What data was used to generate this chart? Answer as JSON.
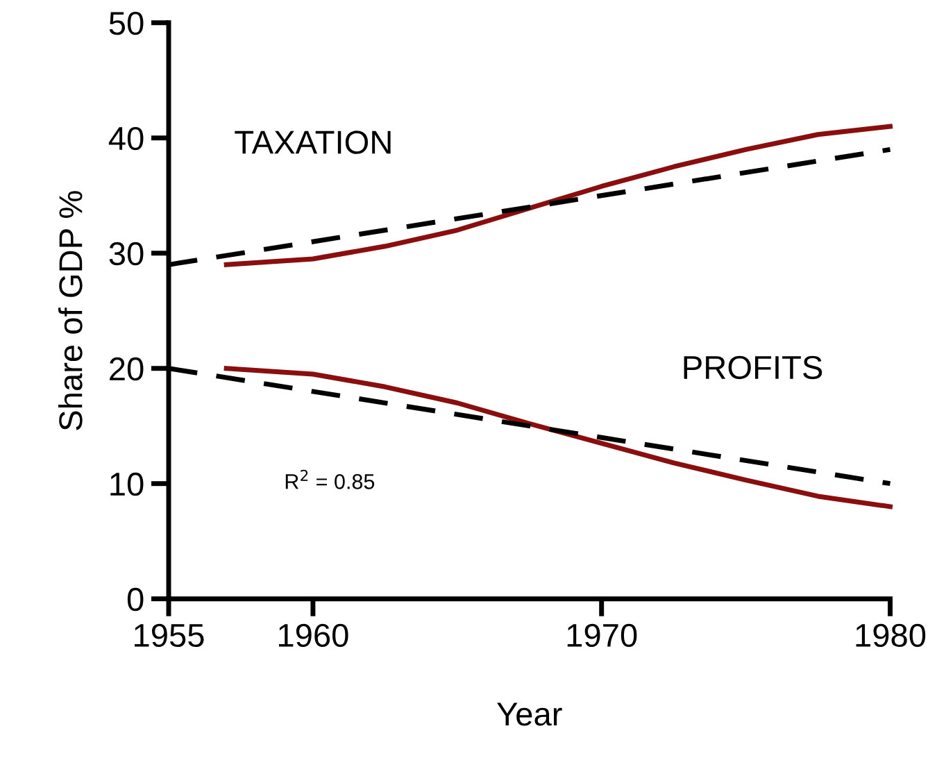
{
  "chart_data": {
    "type": "line",
    "xlabel": "Year",
    "ylabel": "Share of GDP %",
    "xlim": [
      1955,
      1980
    ],
    "ylim": [
      0,
      50
    ],
    "xticks": [
      1955,
      1960,
      1970,
      1980
    ],
    "yticks": [
      0,
      10,
      20,
      30,
      40,
      50
    ],
    "grid": false,
    "legend": false,
    "marker": "none",
    "series": [
      {
        "name": "TAXATION",
        "color": "#8b0e0e",
        "line_style": "solid",
        "x": [
          1957,
          1960,
          1962.5,
          1965,
          1967.5,
          1970,
          1972.5,
          1975,
          1977.5,
          1980
        ],
        "values": [
          29,
          29.5,
          30.6,
          32,
          33.9,
          35.8,
          37.5,
          39,
          40.3,
          41
        ]
      },
      {
        "name": "PROFITS",
        "color": "#8b0e0e",
        "line_style": "solid",
        "x": [
          1957,
          1960,
          1962.5,
          1965,
          1967.5,
          1970,
          1972.5,
          1975,
          1977.5,
          1980
        ],
        "values": [
          20,
          19.5,
          18.4,
          17,
          15.2,
          13.5,
          11.8,
          10.3,
          8.9,
          8
        ]
      },
      {
        "color": "#000000",
        "line_style": "dashed",
        "x": [
          1955,
          1980
        ],
        "values": [
          29,
          39
        ]
      },
      {
        "color": "#000000",
        "line_style": "dashed",
        "x": [
          1955,
          1980
        ],
        "values": [
          20,
          10
        ]
      }
    ],
    "annotations": [
      "R$^{2}$ = 0.85"
    ]
  }
}
